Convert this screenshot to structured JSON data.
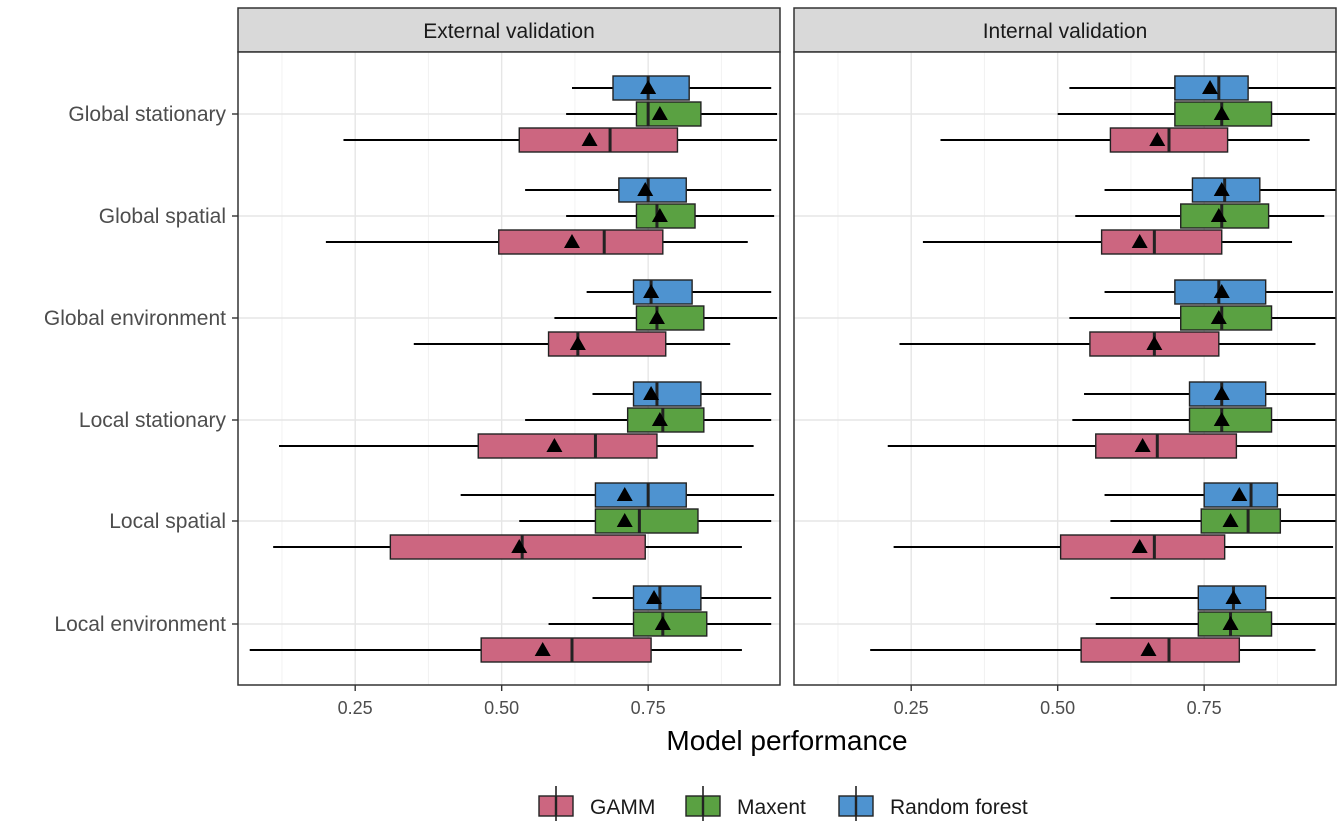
{
  "chart_data": {
    "type": "boxplot",
    "xlabel": "Model performance",
    "x_ticks": [
      0.25,
      0.5,
      0.75
    ],
    "x_tick_labels": [
      "0.25",
      "0.50",
      "0.75"
    ],
    "x_range": [
      0.05,
      0.975
    ],
    "grid": true,
    "legend_position": "bottom",
    "categories": [
      "Global stationary",
      "Global spatial",
      "Global environment",
      "Local stationary",
      "Local spatial",
      "Local environment"
    ],
    "series": [
      {
        "name": "GAMM",
        "color": "#CC6680"
      },
      {
        "name": "Maxent",
        "color": "#5AA142"
      },
      {
        "name": "Random forest",
        "color": "#4E93D0"
      }
    ],
    "mean_marker": "triangle",
    "panels": [
      {
        "title": "External validation",
        "stats": {
          "Global stationary": {
            "GAMM": {
              "whisker_low": 0.23,
              "q1": 0.53,
              "median": 0.685,
              "q3": 0.8,
              "whisker_high": 0.97,
              "mean": 0.65
            },
            "Maxent": {
              "whisker_low": 0.61,
              "q1": 0.73,
              "median": 0.75,
              "q3": 0.84,
              "whisker_high": 0.97,
              "mean": 0.77
            },
            "Random forest": {
              "whisker_low": 0.62,
              "q1": 0.69,
              "median": 0.75,
              "q3": 0.82,
              "whisker_high": 0.96,
              "mean": 0.75
            }
          },
          "Global spatial": {
            "GAMM": {
              "whisker_low": 0.2,
              "q1": 0.495,
              "median": 0.675,
              "q3": 0.775,
              "whisker_high": 0.92,
              "mean": 0.62
            },
            "Maxent": {
              "whisker_low": 0.61,
              "q1": 0.73,
              "median": 0.765,
              "q3": 0.83,
              "whisker_high": 0.965,
              "mean": 0.77
            },
            "Random forest": {
              "whisker_low": 0.54,
              "q1": 0.7,
              "median": 0.75,
              "q3": 0.815,
              "whisker_high": 0.96,
              "mean": 0.745
            }
          },
          "Global environment": {
            "GAMM": {
              "whisker_low": 0.35,
              "q1": 0.58,
              "median": 0.63,
              "q3": 0.78,
              "whisker_high": 0.89,
              "mean": 0.63
            },
            "Maxent": {
              "whisker_low": 0.59,
              "q1": 0.73,
              "median": 0.765,
              "q3": 0.845,
              "whisker_high": 0.97,
              "mean": 0.765
            },
            "Random forest": {
              "whisker_low": 0.645,
              "q1": 0.725,
              "median": 0.755,
              "q3": 0.825,
              "whisker_high": 0.96,
              "mean": 0.755
            }
          },
          "Local stationary": {
            "GAMM": {
              "whisker_low": 0.12,
              "q1": 0.46,
              "median": 0.66,
              "q3": 0.765,
              "whisker_high": 0.93,
              "mean": 0.59
            },
            "Maxent": {
              "whisker_low": 0.54,
              "q1": 0.715,
              "median": 0.775,
              "q3": 0.845,
              "whisker_high": 0.96,
              "mean": 0.77
            },
            "Random forest": {
              "whisker_low": 0.655,
              "q1": 0.725,
              "median": 0.765,
              "q3": 0.84,
              "whisker_high": 0.96,
              "mean": 0.755
            }
          },
          "Local spatial": {
            "GAMM": {
              "whisker_low": 0.11,
              "q1": 0.31,
              "median": 0.535,
              "q3": 0.745,
              "whisker_high": 0.91,
              "mean": 0.53
            },
            "Maxent": {
              "whisker_low": 0.53,
              "q1": 0.66,
              "median": 0.735,
              "q3": 0.835,
              "whisker_high": 0.96,
              "mean": 0.71
            },
            "Random forest": {
              "whisker_low": 0.43,
              "q1": 0.66,
              "median": 0.75,
              "q3": 0.815,
              "whisker_high": 0.965,
              "mean": 0.71
            }
          },
          "Local environment": {
            "GAMM": {
              "whisker_low": 0.07,
              "q1": 0.465,
              "median": 0.62,
              "q3": 0.755,
              "whisker_high": 0.91,
              "mean": 0.57
            },
            "Maxent": {
              "whisker_low": 0.58,
              "q1": 0.725,
              "median": 0.775,
              "q3": 0.85,
              "whisker_high": 0.96,
              "mean": 0.775
            },
            "Random forest": {
              "whisker_low": 0.655,
              "q1": 0.725,
              "median": 0.77,
              "q3": 0.84,
              "whisker_high": 0.96,
              "mean": 0.76
            }
          }
        }
      },
      {
        "title": "Internal validation",
        "stats": {
          "Global stationary": {
            "GAMM": {
              "whisker_low": 0.3,
              "q1": 0.59,
              "median": 0.69,
              "q3": 0.79,
              "whisker_high": 0.93,
              "mean": 0.67
            },
            "Maxent": {
              "whisker_low": 0.5,
              "q1": 0.7,
              "median": 0.78,
              "q3": 0.865,
              "whisker_high": 0.975,
              "mean": 0.78
            },
            "Random forest": {
              "whisker_low": 0.52,
              "q1": 0.7,
              "median": 0.775,
              "q3": 0.825,
              "whisker_high": 0.975,
              "mean": 0.76
            }
          },
          "Global spatial": {
            "GAMM": {
              "whisker_low": 0.27,
              "q1": 0.575,
              "median": 0.665,
              "q3": 0.78,
              "whisker_high": 0.9,
              "mean": 0.64
            },
            "Maxent": {
              "whisker_low": 0.53,
              "q1": 0.71,
              "median": 0.78,
              "q3": 0.86,
              "whisker_high": 0.955,
              "mean": 0.775
            },
            "Random forest": {
              "whisker_low": 0.58,
              "q1": 0.73,
              "median": 0.785,
              "q3": 0.845,
              "whisker_high": 0.975,
              "mean": 0.78
            }
          },
          "Global environment": {
            "GAMM": {
              "whisker_low": 0.23,
              "q1": 0.555,
              "median": 0.665,
              "q3": 0.775,
              "whisker_high": 0.94,
              "mean": 0.665
            },
            "Maxent": {
              "whisker_low": 0.52,
              "q1": 0.71,
              "median": 0.78,
              "q3": 0.865,
              "whisker_high": 0.975,
              "mean": 0.775
            },
            "Random forest": {
              "whisker_low": 0.58,
              "q1": 0.7,
              "median": 0.775,
              "q3": 0.855,
              "whisker_high": 0.97,
              "mean": 0.78
            }
          },
          "Local stationary": {
            "GAMM": {
              "whisker_low": 0.21,
              "q1": 0.565,
              "median": 0.67,
              "q3": 0.805,
              "whisker_high": 0.975,
              "mean": 0.645
            },
            "Maxent": {
              "whisker_low": 0.525,
              "q1": 0.725,
              "median": 0.78,
              "q3": 0.865,
              "whisker_high": 0.975,
              "mean": 0.78
            },
            "Random forest": {
              "whisker_low": 0.545,
              "q1": 0.725,
              "median": 0.78,
              "q3": 0.855,
              "whisker_high": 0.975,
              "mean": 0.78
            }
          },
          "Local spatial": {
            "GAMM": {
              "whisker_low": 0.22,
              "q1": 0.505,
              "median": 0.665,
              "q3": 0.785,
              "whisker_high": 0.97,
              "mean": 0.64
            },
            "Maxent": {
              "whisker_low": 0.59,
              "q1": 0.745,
              "median": 0.825,
              "q3": 0.88,
              "whisker_high": 0.975,
              "mean": 0.795
            },
            "Random forest": {
              "whisker_low": 0.58,
              "q1": 0.75,
              "median": 0.83,
              "q3": 0.875,
              "whisker_high": 0.975,
              "mean": 0.81
            }
          },
          "Local environment": {
            "GAMM": {
              "whisker_low": 0.18,
              "q1": 0.54,
              "median": 0.69,
              "q3": 0.81,
              "whisker_high": 0.94,
              "mean": 0.655
            },
            "Maxent": {
              "whisker_low": 0.565,
              "q1": 0.74,
              "median": 0.795,
              "q3": 0.865,
              "whisker_high": 0.975,
              "mean": 0.795
            },
            "Random forest": {
              "whisker_low": 0.59,
              "q1": 0.74,
              "median": 0.8,
              "q3": 0.855,
              "whisker_high": 0.975,
              "mean": 0.8
            }
          }
        }
      }
    ]
  }
}
